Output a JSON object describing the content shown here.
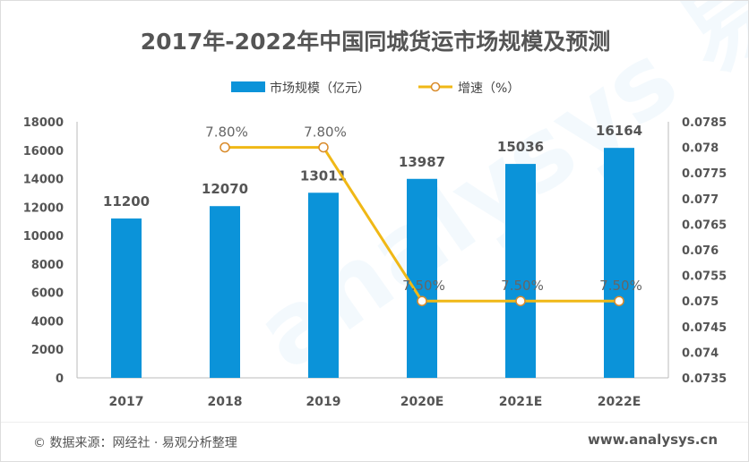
{
  "chart_data": {
    "type": "bar+line",
    "title": "2017年-2022年中国同城货运市场规模及预测",
    "categories": [
      "2017",
      "2018",
      "2019",
      "2020E",
      "2021E",
      "2022E"
    ],
    "series": [
      {
        "name": "市场规模（亿元）",
        "type": "bar",
        "axis": "left",
        "color": "#0b93d9",
        "values": [
          11200,
          12070,
          13011,
          13987,
          15036,
          16164
        ],
        "labels": [
          "11200",
          "12070",
          "13011",
          "13987",
          "15036",
          "16164"
        ]
      },
      {
        "name": "增速（%）",
        "type": "line",
        "axis": "right",
        "color": "#f0b816",
        "values": [
          null,
          0.078,
          0.078,
          0.075,
          0.075,
          0.075
        ],
        "labels": [
          "",
          "7.80%",
          "7.80%",
          "7.50%",
          "7.50%",
          "7.50%"
        ]
      }
    ],
    "y_left": {
      "range": [
        0,
        18000
      ],
      "ticks": [
        "0",
        "2000",
        "4000",
        "6000",
        "8000",
        "10000",
        "12000",
        "14000",
        "16000",
        "18000"
      ]
    },
    "y_right": {
      "range": [
        0.0735,
        0.0785
      ],
      "ticks": [
        "0.0735",
        "0.074",
        "0.0745",
        "0.075",
        "0.0755",
        "0.076",
        "0.0765",
        "0.077",
        "0.0775",
        "0.078",
        "0.0785"
      ]
    },
    "grid": false,
    "legend": "top"
  },
  "footer": {
    "source": "©   数据来源：网经社 · 易观分析整理",
    "website": "www.analysys.cn"
  },
  "watermark": "analysys 易观分析"
}
